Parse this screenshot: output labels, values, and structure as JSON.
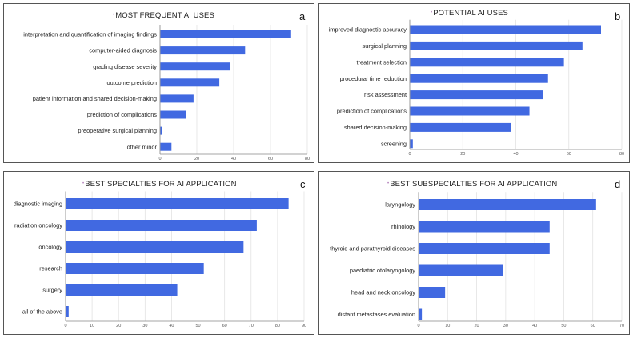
{
  "accent": "#4169e1",
  "bullet_glyph": "•",
  "chart_data": [
    {
      "type": "bar",
      "orientation": "horizontal",
      "panel_label": "a",
      "title": "MOST FREQUENT AI USES",
      "categories": [
        "interpretation and quantification of imaging findings",
        "computer-aided diagnosis",
        "grading disease severity",
        "outcome prediction",
        "patient information and shared decision-making",
        "prediction of complications",
        "preoperative surgical planning",
        "other minor"
      ],
      "values": [
        71,
        46,
        38,
        32,
        18,
        14,
        1,
        6
      ],
      "xlim": [
        0,
        80
      ],
      "ticks": [
        "0",
        "20",
        "40",
        "60",
        "80"
      ],
      "grid": true
    },
    {
      "type": "bar",
      "orientation": "horizontal",
      "panel_label": "b",
      "title": "POTENTIAL AI USES",
      "categories": [
        "improved diagnostic accuracy",
        "surgical planning",
        "treatment selection",
        "procedural time reduction",
        "risk assessment",
        "prediction of complications",
        "shared decision-making",
        "screening"
      ],
      "values": [
        72,
        65,
        58,
        52,
        50,
        45,
        38,
        1
      ],
      "xlim": [
        0,
        80
      ],
      "ticks": [
        "0",
        "20",
        "40",
        "60",
        "80"
      ],
      "grid": true
    },
    {
      "type": "bar",
      "orientation": "horizontal",
      "panel_label": "c",
      "title": "BEST SPECIALTIES FOR AI APPLICATION",
      "categories": [
        "diagnostic imaging",
        "radiation oncology",
        "oncology",
        "research",
        "surgery",
        "all of the above"
      ],
      "values": [
        84,
        72,
        67,
        52,
        42,
        1
      ],
      "xlim": [
        0,
        90
      ],
      "ticks": [
        "0",
        "10",
        "20",
        "30",
        "40",
        "50",
        "60",
        "70",
        "80",
        "90"
      ],
      "grid": true
    },
    {
      "type": "bar",
      "orientation": "horizontal",
      "panel_label": "d",
      "title": "BEST SUBSPECIALTIES FOR AI APPLICATION",
      "categories": [
        "laryngology",
        "rhinology",
        "thyroid and parathyroid diseases",
        "paediatric otolaryngology",
        "head and neck oncology",
        "distant metastases evaluation"
      ],
      "values": [
        61,
        45,
        45,
        29,
        9,
        1
      ],
      "xlim": [
        0,
        70
      ],
      "ticks": [
        "0",
        "10",
        "20",
        "30",
        "40",
        "50",
        "60",
        "70"
      ],
      "grid": true
    }
  ]
}
